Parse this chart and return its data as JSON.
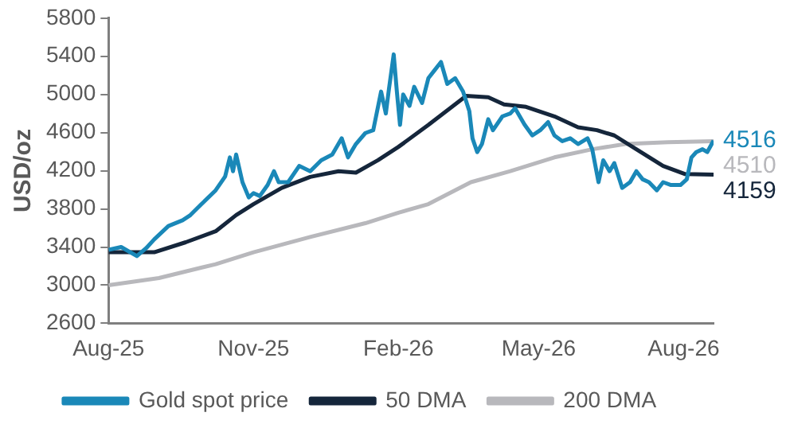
{
  "chart_data": {
    "type": "line",
    "ylabel": "USD/oz",
    "xlim": [
      "2025-08-01",
      "2026-08-20"
    ],
    "xticks": [
      {
        "value": "2025-08-01",
        "label": "Aug-25"
      },
      {
        "value": "2025-11-01",
        "label": "Nov-25"
      },
      {
        "value": "2026-02-01",
        "label": "Feb-26"
      },
      {
        "value": "2026-05-01",
        "label": "May-26"
      },
      {
        "value": "2026-08-01",
        "label": "Aug-26"
      }
    ],
    "ylim": [
      2600,
      5800
    ],
    "yticks": [
      2600,
      3000,
      3400,
      3800,
      4200,
      4600,
      5000,
      5400,
      5800
    ],
    "grid": false,
    "legend": "bottom",
    "marker": "none",
    "line_style": "solid",
    "series": [
      {
        "name": "Gold spot price",
        "color": "#1a88b8",
        "x": [
          "2025-08-01",
          "2025-08-09",
          "2025-08-19",
          "2025-08-25",
          "2025-08-30",
          "2025-09-08",
          "2025-09-17",
          "2025-09-22",
          "2025-09-29",
          "2025-10-08",
          "2025-10-14",
          "2025-10-17",
          "2025-10-19",
          "2025-10-21",
          "2025-10-25",
          "2025-10-29",
          "2025-11-01",
          "2025-11-05",
          "2025-11-10",
          "2025-11-14",
          "2025-11-17",
          "2025-11-23",
          "2025-11-30",
          "2025-12-07",
          "2025-12-14",
          "2025-12-21",
          "2025-12-27",
          "2025-12-31",
          "2026-01-05",
          "2026-01-11",
          "2026-01-16",
          "2026-01-21",
          "2026-01-24",
          "2026-01-26",
          "2026-01-29",
          "2026-01-31",
          "2026-02-02",
          "2026-02-04",
          "2026-02-08",
          "2026-02-11",
          "2026-02-16",
          "2026-02-20",
          "2026-02-24",
          "2026-02-28",
          "2026-03-04",
          "2026-03-09",
          "2026-03-14",
          "2026-03-18",
          "2026-03-20",
          "2026-03-23",
          "2026-03-26",
          "2026-03-30",
          "2026-04-02",
          "2026-04-08",
          "2026-04-13",
          "2026-04-16",
          "2026-04-22",
          "2026-04-27",
          "2026-05-02",
          "2026-05-07",
          "2026-05-11",
          "2026-05-16",
          "2026-05-21",
          "2026-05-26",
          "2026-06-01",
          "2026-06-04",
          "2026-06-08",
          "2026-06-11",
          "2026-06-15",
          "2026-06-18",
          "2026-06-23",
          "2026-06-28",
          "2026-07-02",
          "2026-07-06",
          "2026-07-10",
          "2026-07-15",
          "2026-07-19",
          "2026-07-24",
          "2026-07-30",
          "2026-08-03",
          "2026-08-06",
          "2026-08-09",
          "2026-08-13",
          "2026-08-16",
          "2026-08-20"
        ],
        "values": [
          3370,
          3400,
          3305,
          3390,
          3480,
          3620,
          3680,
          3735,
          3850,
          3995,
          4140,
          4340,
          4195,
          4370,
          4080,
          3920,
          3965,
          3935,
          4050,
          4195,
          4080,
          4080,
          4250,
          4195,
          4310,
          4370,
          4540,
          4340,
          4480,
          4595,
          4625,
          5030,
          4800,
          5060,
          5420,
          5030,
          4680,
          5000,
          4880,
          5080,
          4910,
          5170,
          5255,
          5340,
          5110,
          5170,
          5030,
          4825,
          4540,
          4395,
          4480,
          4740,
          4625,
          4770,
          4800,
          4855,
          4685,
          4570,
          4625,
          4710,
          4570,
          4510,
          4540,
          4480,
          4540,
          4425,
          4080,
          4310,
          4195,
          4280,
          4020,
          4080,
          4195,
          4110,
          4080,
          3995,
          4080,
          4050,
          4050,
          4110,
          4340,
          4395,
          4425,
          4395,
          4516
        ]
      },
      {
        "name": "50 DMA",
        "color": "#15263b",
        "x": [
          "2025-08-01",
          "2025-08-30",
          "2025-09-19",
          "2025-10-08",
          "2025-10-21",
          "2025-11-01",
          "2025-11-19",
          "2025-12-07",
          "2025-12-25",
          "2026-01-05",
          "2026-01-19",
          "2026-02-01",
          "2026-02-20",
          "2026-03-16",
          "2026-03-30",
          "2026-04-09",
          "2026-04-23",
          "2026-05-11",
          "2026-05-26",
          "2026-06-07",
          "2026-06-18",
          "2026-07-02",
          "2026-07-19",
          "2026-08-02",
          "2026-08-20"
        ],
        "values": [
          3345,
          3345,
          3450,
          3565,
          3735,
          3850,
          4020,
          4135,
          4195,
          4180,
          4310,
          4450,
          4680,
          4985,
          4970,
          4895,
          4870,
          4770,
          4655,
          4625,
          4570,
          4425,
          4250,
          4165,
          4159
        ]
      },
      {
        "name": "200 DMA",
        "color": "#b8b8bc",
        "x": [
          "2025-08-01",
          "2025-09-02",
          "2025-10-08",
          "2025-11-01",
          "2025-12-07",
          "2026-01-11",
          "2026-02-01",
          "2026-02-20",
          "2026-03-19",
          "2026-04-13",
          "2026-05-11",
          "2026-06-04",
          "2026-06-25",
          "2026-07-22",
          "2026-08-20"
        ],
        "values": [
          3000,
          3075,
          3220,
          3345,
          3505,
          3650,
          3760,
          3850,
          4080,
          4195,
          4340,
          4425,
          4480,
          4500,
          4510
        ]
      }
    ],
    "annotations": [
      {
        "text": "4516",
        "x": "2026-08-20",
        "y": 4516
      },
      {
        "text": "4510",
        "x": "2026-08-20",
        "y": 4510
      },
      {
        "text": "4159",
        "x": "2026-08-20",
        "y": 4159
      }
    ]
  }
}
